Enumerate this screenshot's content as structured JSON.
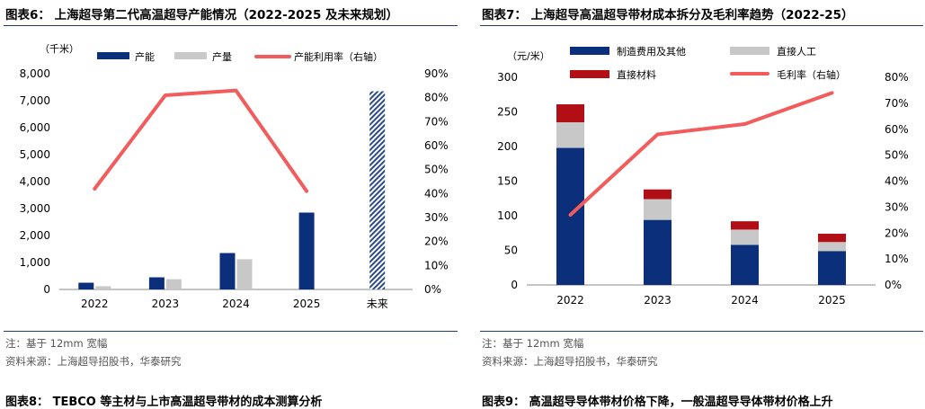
{
  "left": {
    "title": "图表6：  上海超导第二代高温超导产能情况（2022-2025 及未来规划）",
    "note": "注：基于 12mm 宽幅",
    "source": "资料来源：上海超导招股书，华泰研究",
    "next_title": "图表8：  TEBCO 等主材与上市高温超导带材的成本测算分析",
    "unit": "（千米）",
    "colors": {
      "capacity": "#0b2f7a",
      "output": "#c8c8c8",
      "util": "#f25c5c",
      "future": "#2a4a8a"
    },
    "chart_data": {
      "type": "bar",
      "categories": [
        "2022",
        "2023",
        "2024",
        "2025",
        "未来"
      ],
      "series": [
        {
          "name": "产能",
          "values": [
            250,
            450,
            1350,
            2850,
            7350
          ]
        },
        {
          "name": "产量",
          "values": [
            120,
            380,
            1120,
            null,
            null
          ]
        },
        {
          "name": "产能利用率（右轴）",
          "values": [
            42,
            81,
            83,
            41,
            null
          ],
          "axis": "right",
          "kind": "line"
        }
      ],
      "ylim": [
        0,
        8000
      ],
      "yticks": [
        "0",
        "1,000",
        "2,000",
        "3,000",
        "4,000",
        "5,000",
        "6,000",
        "7,000",
        "8,000"
      ],
      "y2lim": [
        0,
        90
      ],
      "y2ticks": [
        "0%",
        "10%",
        "20%",
        "30%",
        "40%",
        "50%",
        "60%",
        "70%",
        "80%",
        "90%"
      ],
      "legend": [
        "产能",
        "产量",
        "产能利用率（右轴）"
      ],
      "legend_position": "top"
    }
  },
  "right": {
    "title": "图表7：  上海超导高温超导带材成本拆分及毛利率趋势（2022-25）",
    "note": "注：基于 12mm 宽幅",
    "source": "资料来源：上海超导招股书，华泰研究",
    "next_title": "图表9：  高温超导导体带材价格下降，一般温超导导体带材价格上升",
    "unit": "（元/米）",
    "colors": {
      "mfg": "#0b2f7a",
      "labor": "#c8c8c8",
      "material": "#b10f15",
      "margin": "#f25c5c"
    },
    "chart_data": {
      "type": "bar",
      "stacked": true,
      "categories": [
        "2022",
        "2023",
        "2024",
        "2025"
      ],
      "series": [
        {
          "name": "制造费用及其他",
          "values": [
            198,
            94,
            58,
            49
          ]
        },
        {
          "name": "直接人工",
          "values": [
            37,
            30,
            22,
            13
          ]
        },
        {
          "name": "直接材料",
          "values": [
            26,
            14,
            12,
            12
          ]
        },
        {
          "name": "毛利率（右轴）",
          "values": [
            27,
            58,
            62,
            74
          ],
          "axis": "right",
          "kind": "line"
        }
      ],
      "ylim": [
        0,
        300
      ],
      "yticks": [
        "0",
        "50",
        "100",
        "150",
        "200",
        "250",
        "300"
      ],
      "y2lim": [
        0,
        80
      ],
      "y2ticks": [
        "0%",
        "10%",
        "20%",
        "30%",
        "40%",
        "50%",
        "60%",
        "70%",
        "80%"
      ],
      "legend": [
        "制造费用及其他",
        "直接人工",
        "直接材料",
        "毛利率（右轴）"
      ],
      "legend_position": "top"
    }
  }
}
